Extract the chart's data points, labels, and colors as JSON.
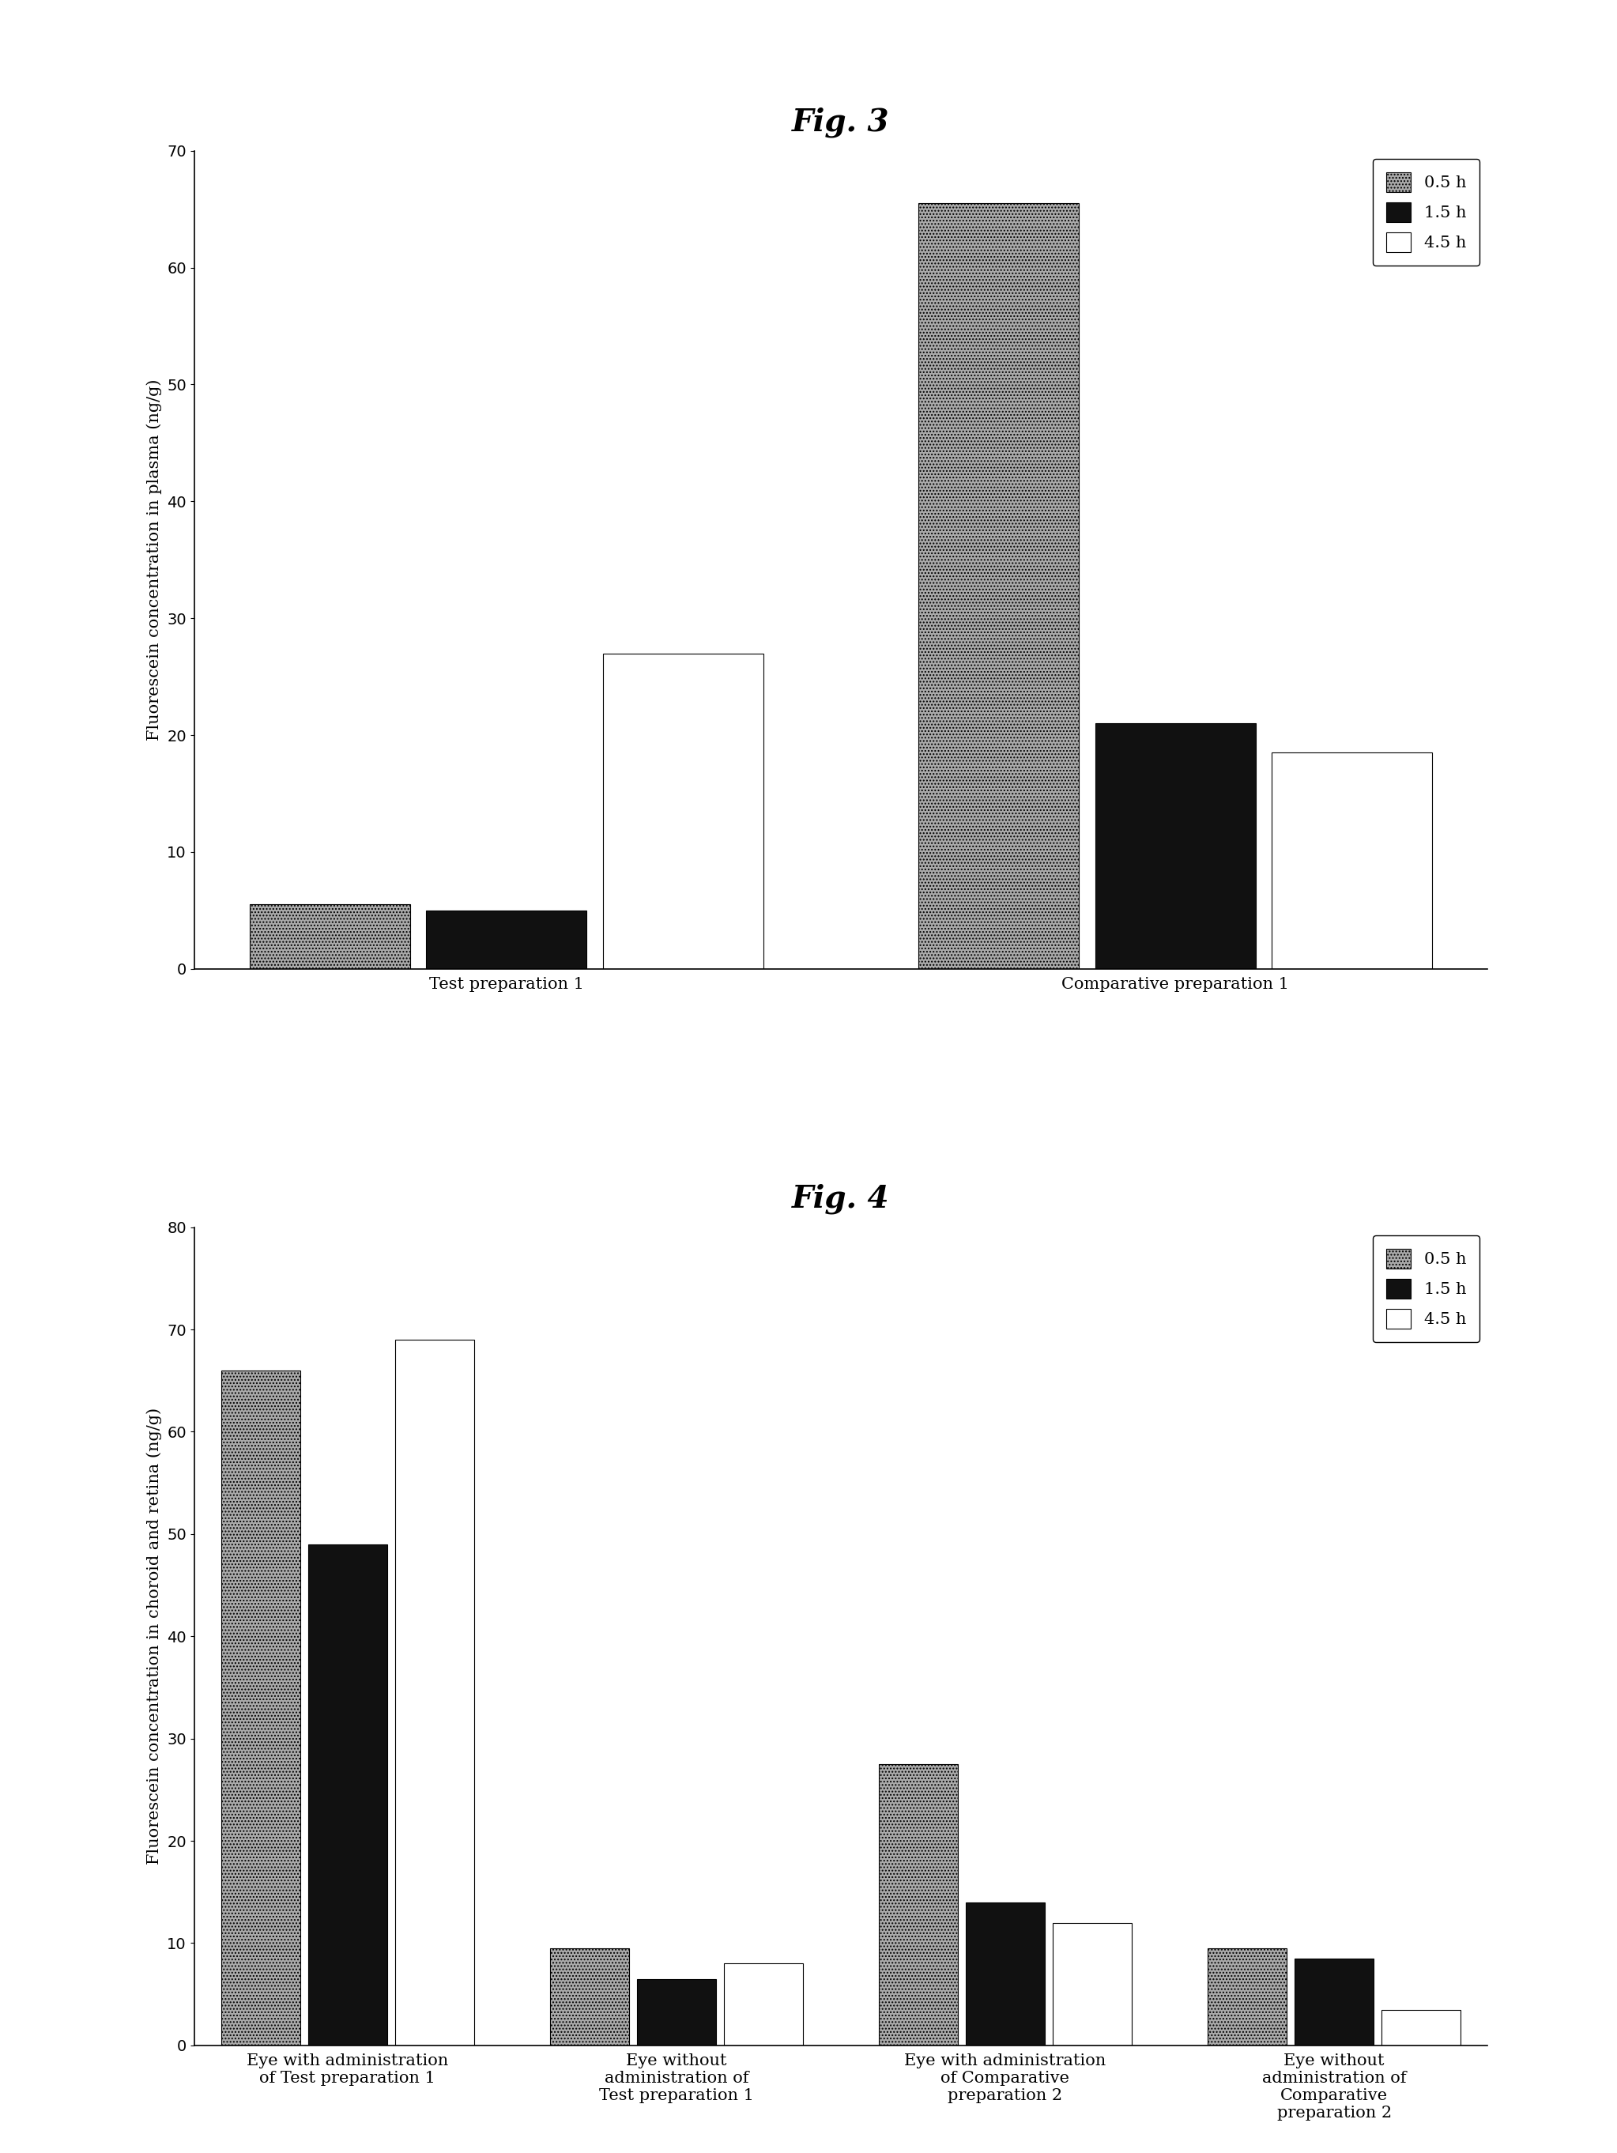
{
  "fig3": {
    "title": "Fig. 3",
    "ylabel": "Fluorescein concentration in plasma (ng/g)",
    "ylim": [
      0,
      70
    ],
    "yticks": [
      0,
      10,
      20,
      30,
      40,
      50,
      60,
      70
    ],
    "groups": [
      "Test preparation 1",
      "Comparative preparation 1"
    ],
    "series": [
      {
        "label": "0.5 h",
        "color": "#aaaaaa",
        "hatch": "....",
        "values": [
          5.5,
          65.5
        ]
      },
      {
        "label": "1.5 h",
        "color": "#111111",
        "hatch": "",
        "values": [
          5.0,
          21.0
        ]
      },
      {
        "label": "4.5 h",
        "color": "#ffffff",
        "hatch": "",
        "values": [
          27.0,
          18.5
        ]
      }
    ],
    "bar_width": 0.18,
    "group_centers": [
      0.3,
      1.05
    ]
  },
  "fig4": {
    "title": "Fig. 4",
    "ylabel": "Fluorescein concentration in choroid and retina (ng/g)",
    "ylim": [
      0,
      80
    ],
    "yticks": [
      0,
      10,
      20,
      30,
      40,
      50,
      60,
      70,
      80
    ],
    "groups": [
      "Eye with administration\nof Test preparation 1",
      "Eye without\nadministration of\nTest preparation 1",
      "Eye with administration\nof Comparative\npreparation 2",
      "Eye without\nadministration of\nComparative\npreparation 2"
    ],
    "series": [
      {
        "label": "0.5 h",
        "color": "#aaaaaa",
        "hatch": "....",
        "values": [
          66.0,
          9.5,
          27.5,
          9.5
        ]
      },
      {
        "label": "1.5 h",
        "color": "#111111",
        "hatch": "",
        "values": [
          49.0,
          6.5,
          14.0,
          8.5
        ]
      },
      {
        "label": "4.5 h",
        "color": "#ffffff",
        "hatch": "",
        "values": [
          69.0,
          8.0,
          12.0,
          3.5
        ]
      }
    ],
    "bar_width": 0.18,
    "group_centers": [
      0.3,
      1.05,
      1.8,
      2.55
    ]
  },
  "background_color": "#ffffff",
  "title_fontsize": 28,
  "label_fontsize": 15,
  "tick_fontsize": 14,
  "legend_fontsize": 15,
  "xtick_fontsize": 15
}
